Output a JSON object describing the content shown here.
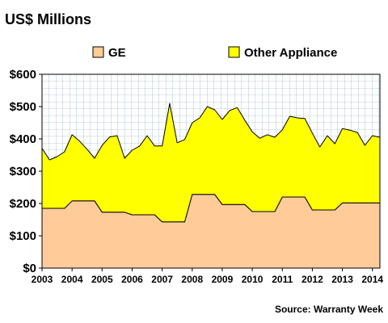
{
  "chart_data": {
    "type": "area",
    "stacked": true,
    "title": "US$ Millions",
    "source": "Source: Warranty Week",
    "y_tick_labels": [
      "$0",
      "$100",
      "$200",
      "$300",
      "$400",
      "$500",
      "$600"
    ],
    "ylim": [
      0,
      600
    ],
    "x_tick_labels": [
      "2003",
      "2004",
      "2005",
      "2006",
      "2007",
      "2008",
      "2009",
      "2010",
      "2011",
      "2012",
      "2013",
      "2014"
    ],
    "xlim": [
      2003.0,
      2014.25
    ],
    "grid": true,
    "legend_position": "top",
    "x": [
      2003.0,
      2003.25,
      2003.5,
      2003.75,
      2004.0,
      2004.25,
      2004.5,
      2004.75,
      2005.0,
      2005.25,
      2005.5,
      2005.75,
      2006.0,
      2006.25,
      2006.5,
      2006.75,
      2007.0,
      2007.25,
      2007.5,
      2007.75,
      2008.0,
      2008.25,
      2008.5,
      2008.75,
      2009.0,
      2009.25,
      2009.5,
      2009.75,
      2010.0,
      2010.25,
      2010.5,
      2010.75,
      2011.0,
      2011.25,
      2011.5,
      2011.75,
      2012.0,
      2012.25,
      2012.5,
      2012.75,
      2013.0,
      2013.25,
      2013.5,
      2013.75,
      2014.0,
      2014.25
    ],
    "series": [
      {
        "name": "GE",
        "color": "#ffcc99",
        "values": [
          185,
          185,
          185,
          185,
          208,
          208,
          208,
          208,
          173,
          173,
          173,
          173,
          165,
          165,
          165,
          165,
          143,
          143,
          143,
          143,
          228,
          228,
          228,
          228,
          197,
          197,
          197,
          197,
          175,
          175,
          175,
          175,
          220,
          220,
          220,
          220,
          180,
          180,
          180,
          180,
          202,
          202,
          202,
          202,
          202,
          202
        ]
      },
      {
        "name": "Other Appliance",
        "color": "#ffff00",
        "values": [
          186,
          150,
          160,
          175,
          205,
          185,
          160,
          132,
          207,
          233,
          237,
          167,
          200,
          213,
          245,
          213,
          235,
          367,
          245,
          255,
          222,
          237,
          272,
          262,
          263,
          291,
          300,
          261,
          247,
          227,
          238,
          230,
          208,
          250,
          245,
          243,
          238,
          195,
          230,
          205,
          230,
          225,
          218,
          178,
          208,
          203
        ]
      }
    ]
  }
}
